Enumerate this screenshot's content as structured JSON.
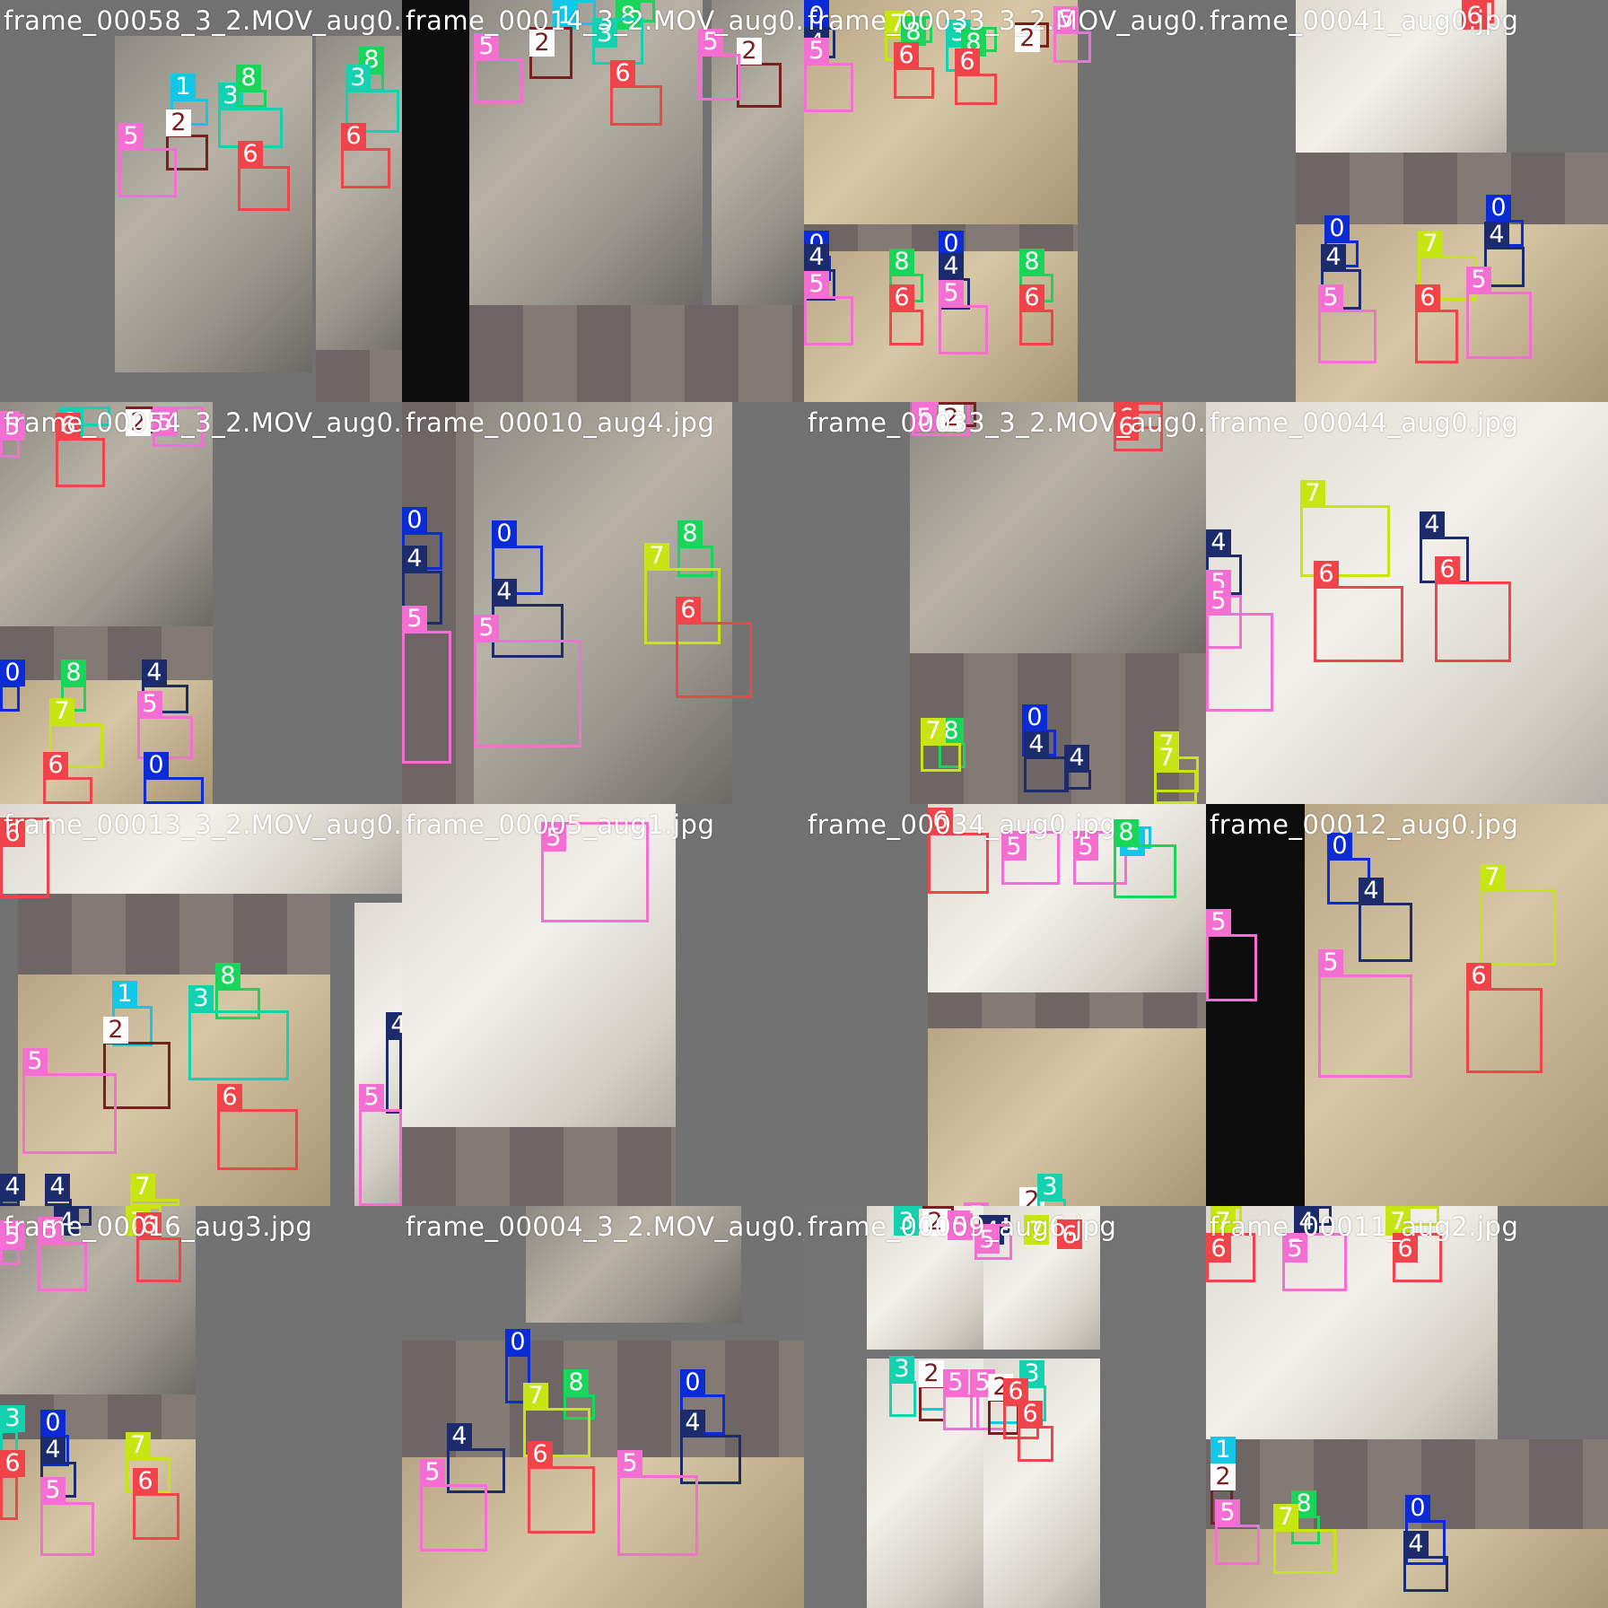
{
  "palette": {
    "0": "#0a2bd6",
    "1": "#13c8e6",
    "2": "#7a1f1f",
    "3": "#14d2b0",
    "4": "#1c2b6b",
    "5": "#f56fd3",
    "6": "#f0434a",
    "7": "#c7e512",
    "8": "#19d65a"
  },
  "label_text_colors": {
    "2": "#7a1f1f",
    "default": "#ffffff"
  },
  "tiles": [
    {
      "caption": "frame_00058_3_2.MOV_aug0.jpg",
      "boxes": [
        {
          "cls": "1"
        },
        {
          "cls": "2"
        },
        {
          "cls": "3"
        },
        {
          "cls": "8"
        },
        {
          "cls": "5"
        },
        {
          "cls": "6"
        },
        {
          "cls": "8"
        },
        {
          "cls": "3"
        },
        {
          "cls": "6"
        }
      ]
    },
    {
      "caption": "frame_00014_3_2.MOV_aug0.jpg",
      "boxes": [
        {
          "cls": "1"
        },
        {
          "cls": "8"
        },
        {
          "cls": "2"
        },
        {
          "cls": "3"
        },
        {
          "cls": "5"
        },
        {
          "cls": "6"
        },
        {
          "cls": "2"
        },
        {
          "cls": "5"
        }
      ]
    },
    {
      "caption": "frame_00033_3_2.MOV_aug0.jpg",
      "boxes": [
        {
          "cls": "0"
        },
        {
          "cls": "4"
        },
        {
          "cls": "5"
        },
        {
          "cls": "7"
        },
        {
          "cls": "8"
        },
        {
          "cls": "6"
        },
        {
          "cls": "3"
        },
        {
          "cls": "8"
        },
        {
          "cls": "6"
        },
        {
          "cls": "2"
        },
        {
          "cls": "5"
        },
        {
          "cls": "0"
        },
        {
          "cls": "4"
        },
        {
          "cls": "5"
        },
        {
          "cls": "8"
        },
        {
          "cls": "6"
        },
        {
          "cls": "0"
        },
        {
          "cls": "4"
        },
        {
          "cls": "5"
        },
        {
          "cls": "8"
        },
        {
          "cls": "6"
        }
      ]
    },
    {
      "caption": "frame_00041_aug0.jpg",
      "boxes": [
        {
          "cls": "6"
        },
        {
          "cls": "0"
        },
        {
          "cls": "4"
        },
        {
          "cls": "5"
        },
        {
          "cls": "7"
        },
        {
          "cls": "6"
        },
        {
          "cls": "0"
        },
        {
          "cls": "4"
        },
        {
          "cls": "5"
        }
      ]
    },
    {
      "caption": "frame_00054_3_2.MOV_aug0.jpg",
      "boxes": [
        {
          "cls": "5"
        },
        {
          "cls": "3"
        },
        {
          "cls": "2"
        },
        {
          "cls": "5"
        },
        {
          "cls": "6"
        },
        {
          "cls": "0"
        },
        {
          "cls": "8"
        },
        {
          "cls": "7"
        },
        {
          "cls": "4"
        },
        {
          "cls": "5"
        },
        {
          "cls": "6"
        },
        {
          "cls": "0"
        },
        {
          "cls": "4"
        },
        {
          "cls": "5"
        }
      ]
    },
    {
      "caption": "frame_00010_aug4.jpg",
      "boxes": [
        {
          "cls": "0"
        },
        {
          "cls": "4"
        },
        {
          "cls": "5"
        },
        {
          "cls": "0"
        },
        {
          "cls": "4"
        },
        {
          "cls": "8"
        },
        {
          "cls": "7"
        },
        {
          "cls": "5"
        },
        {
          "cls": "6"
        }
      ]
    },
    {
      "caption": "frame_00033_3_2.MOV_aug0.jpg",
      "boxes": [
        {
          "cls": "5"
        },
        {
          "cls": "2"
        },
        {
          "cls": "6"
        },
        {
          "cls": "6"
        },
        {
          "cls": "8"
        },
        {
          "cls": "7"
        },
        {
          "cls": "0"
        },
        {
          "cls": "4"
        },
        {
          "cls": "7"
        },
        {
          "cls": "4"
        },
        {
          "cls": "7"
        }
      ]
    },
    {
      "caption": "frame_00044_aug0.jpg",
      "boxes": [
        {
          "cls": "7"
        },
        {
          "cls": "4"
        },
        {
          "cls": "4"
        },
        {
          "cls": "5"
        },
        {
          "cls": "6"
        },
        {
          "cls": "5"
        },
        {
          "cls": "6"
        }
      ]
    },
    {
      "caption": "frame_00013_3_2.MOV_aug0.jpg",
      "boxes": [
        {
          "cls": "6"
        },
        {
          "cls": "8"
        },
        {
          "cls": "1"
        },
        {
          "cls": "2"
        },
        {
          "cls": "3"
        },
        {
          "cls": "5"
        },
        {
          "cls": "6"
        },
        {
          "cls": "4"
        },
        {
          "cls": "5"
        },
        {
          "cls": "4"
        },
        {
          "cls": "4"
        },
        {
          "cls": "7"
        }
      ]
    },
    {
      "caption": "frame_00005_aug1.jpg",
      "boxes": [
        {
          "cls": "5"
        }
      ]
    },
    {
      "caption": "frame_00034_aug0.jpg",
      "boxes": [
        {
          "cls": "6"
        },
        {
          "cls": "5"
        },
        {
          "cls": "5"
        },
        {
          "cls": "1"
        },
        {
          "cls": "8"
        },
        {
          "cls": "2"
        },
        {
          "cls": "3"
        },
        {
          "cls": "5"
        },
        {
          "cls": "6"
        },
        {
          "cls": "0"
        },
        {
          "cls": "4"
        },
        {
          "cls": "5"
        }
      ]
    },
    {
      "caption": "frame_00012_aug0.jpg",
      "boxes": [
        {
          "cls": "0"
        },
        {
          "cls": "4"
        },
        {
          "cls": "7"
        },
        {
          "cls": "5"
        },
        {
          "cls": "5"
        },
        {
          "cls": "6"
        }
      ]
    },
    {
      "caption": "frame_00016_aug3.jpg",
      "boxes": [
        {
          "cls": "5"
        },
        {
          "cls": "4"
        },
        {
          "cls": "5"
        },
        {
          "cls": "7"
        },
        {
          "cls": "6"
        },
        {
          "cls": "3"
        },
        {
          "cls": "0"
        },
        {
          "cls": "4"
        },
        {
          "cls": "6"
        },
        {
          "cls": "5"
        },
        {
          "cls": "7"
        },
        {
          "cls": "6"
        }
      ]
    },
    {
      "caption": "frame_00004_3_2.MOV_aug0.jpg",
      "boxes": [
        {
          "cls": "0"
        },
        {
          "cls": "8"
        },
        {
          "cls": "7"
        },
        {
          "cls": "0"
        },
        {
          "cls": "4"
        },
        {
          "cls": "4"
        },
        {
          "cls": "6"
        },
        {
          "cls": "5"
        },
        {
          "cls": "5"
        }
      ]
    },
    {
      "caption": "frame_00009_aug6.jpg",
      "boxes": [
        {
          "cls": "3"
        },
        {
          "cls": "2"
        },
        {
          "cls": "5"
        },
        {
          "cls": "4"
        },
        {
          "cls": "7"
        },
        {
          "cls": "5"
        },
        {
          "cls": "6"
        },
        {
          "cls": "3"
        },
        {
          "cls": "1"
        },
        {
          "cls": "2"
        },
        {
          "cls": "5"
        },
        {
          "cls": "5"
        },
        {
          "cls": "1"
        },
        {
          "cls": "2"
        },
        {
          "cls": "3"
        },
        {
          "cls": "6"
        },
        {
          "cls": "6"
        }
      ]
    },
    {
      "caption": "frame_00011_aug2.jpg",
      "boxes": [
        {
          "cls": "7"
        },
        {
          "cls": "4"
        },
        {
          "cls": "7"
        },
        {
          "cls": "6"
        },
        {
          "cls": "5"
        },
        {
          "cls": "6"
        },
        {
          "cls": "1"
        },
        {
          "cls": "2"
        },
        {
          "cls": "5"
        },
        {
          "cls": "8"
        },
        {
          "cls": "7"
        },
        {
          "cls": "0"
        },
        {
          "cls": "4"
        }
      ]
    }
  ]
}
